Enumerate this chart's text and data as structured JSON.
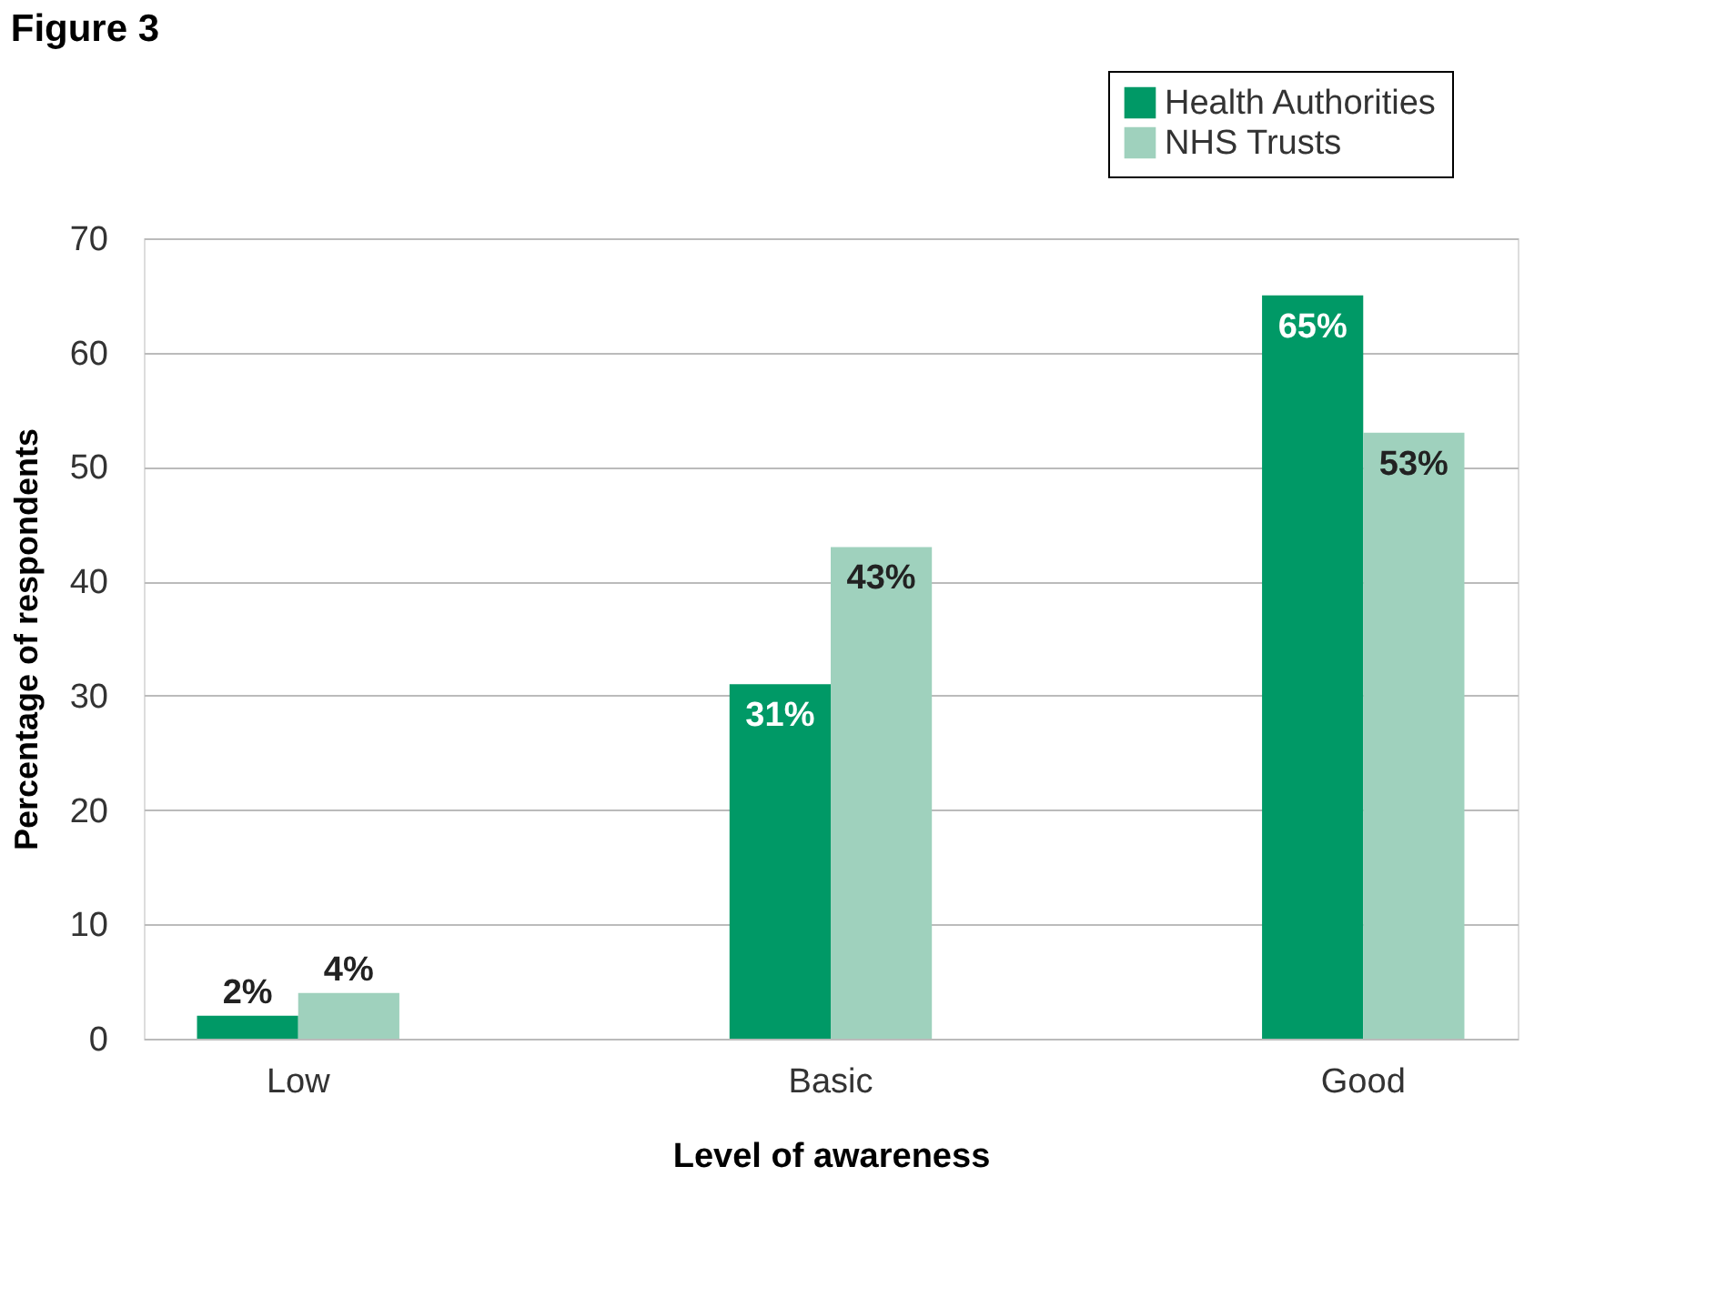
{
  "chart_data": {
    "type": "bar",
    "title": "Figure 3",
    "xlabel": "Level of awareness",
    "ylabel": "Percentage of respondents",
    "categories": [
      "Low",
      "Basic",
      "Good"
    ],
    "series": [
      {
        "name": "Health Authorities",
        "color": "#009966",
        "values": [
          2,
          31,
          65
        ],
        "value_labels": [
          "2%",
          "31%",
          "65%"
        ]
      },
      {
        "name": "NHS Trusts",
        "color": "#9fd1bd",
        "values": [
          4,
          43,
          53
        ],
        "value_labels": [
          "4%",
          "43%",
          "53%"
        ]
      }
    ],
    "ylim": [
      0,
      70
    ],
    "yticks": [
      0,
      10,
      20,
      30,
      40,
      50,
      60,
      70
    ],
    "grid": "y",
    "legend": "top right"
  }
}
